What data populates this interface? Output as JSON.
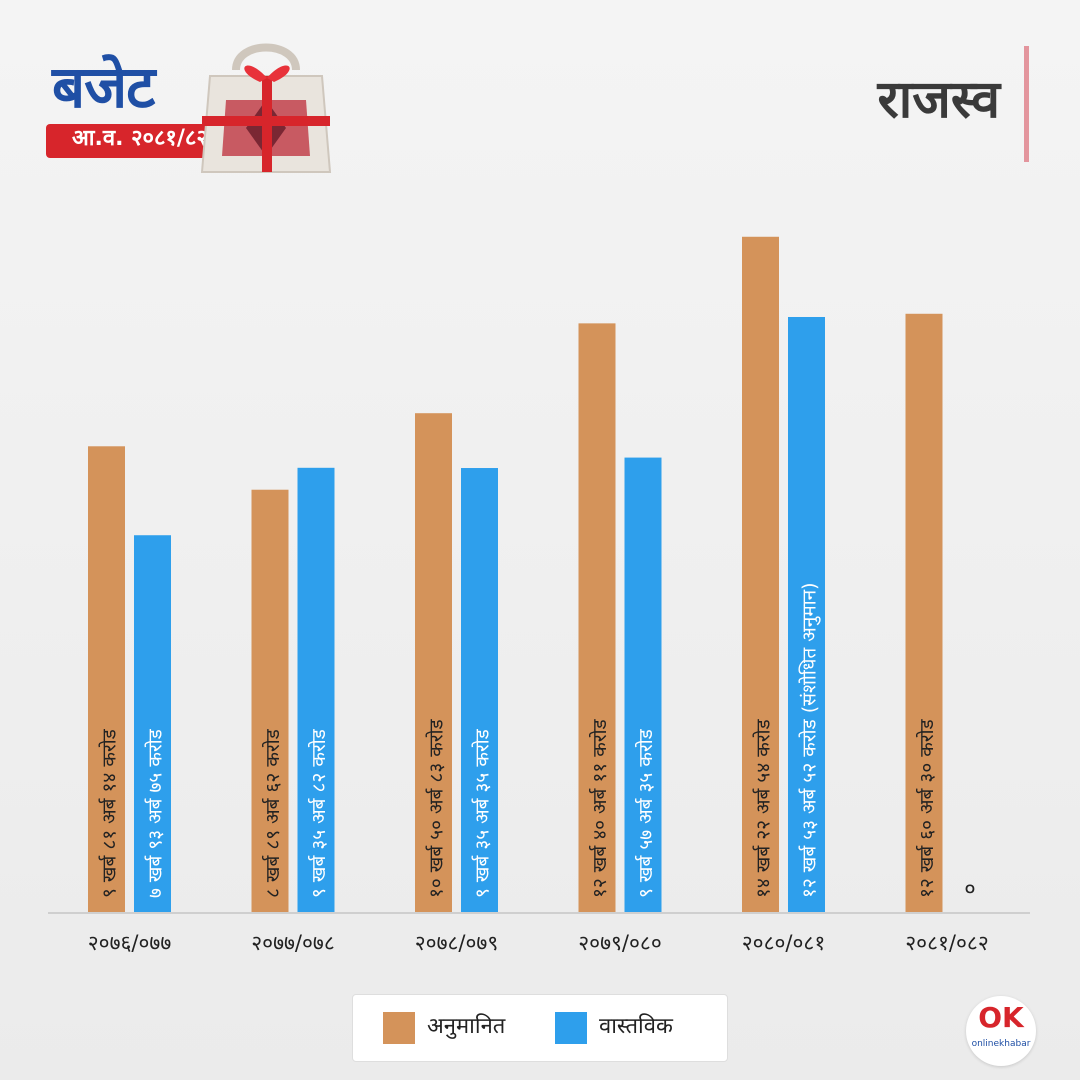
{
  "logo": {
    "word": "बजेट",
    "year": "आ.व. २०८१/८२",
    "bag_icon": "gift-bag-icon"
  },
  "header": {
    "title": "राजस्व"
  },
  "colors": {
    "estimated": "#D4935A",
    "actual": "#2E9FEC",
    "logo_blue": "#1F4FA5",
    "logo_red": "#D7252B"
  },
  "chart_data": {
    "type": "bar",
    "title": "राजस्व",
    "categories": [
      "२०७६/०७७",
      "२०७७/०७८",
      "२०७८/०७९",
      "२०७९/०८०",
      "२०८०/०८१",
      "२०८१/०८२"
    ],
    "series": [
      {
        "name": "अनुमानित",
        "values": [
          981.14,
          889.62,
          1050.83,
          1240.11,
          1422.54,
          1260.3
        ],
        "labels": [
          "९ खर्ब ८१ अर्ब १४ करोड",
          "८ खर्ब ८९ अर्ब ६२ करोड",
          "१० खर्ब ५० अर्ब ८३ करोड",
          "१२ खर्ब ४० अर्ब ११ करोड",
          "१४ खर्ब २२ अर्ब ५४ करोड",
          "१२ खर्ब ६० अर्ब ३० करोड"
        ]
      },
      {
        "name": "वास्तविक",
        "values": [
          793.75,
          935.82,
          935.35,
          957.35,
          1253.52,
          0
        ],
        "labels": [
          "७ खर्ब ९३ अर्ब ७५ करोड",
          "९ खर्ब ३५ अर्ब ८२ करोड",
          "९ खर्ब ३५ अर्ब ३५ करोड",
          "९ खर्ब ५७ अर्ब ३५ करोड",
          "१२ खर्ब ५३ अर्ब ५२ करोड (संशोधित अनुमान)",
          "०"
        ]
      }
    ],
    "ylim": [
      0,
      1500
    ],
    "grid": false,
    "legend_position": "bottom-center"
  },
  "legend": {
    "items": [
      {
        "label": "अनुमानित"
      },
      {
        "label": "वास्तविक"
      }
    ]
  },
  "brand": {
    "mark": "OK",
    "text": "onlinekhabar"
  }
}
